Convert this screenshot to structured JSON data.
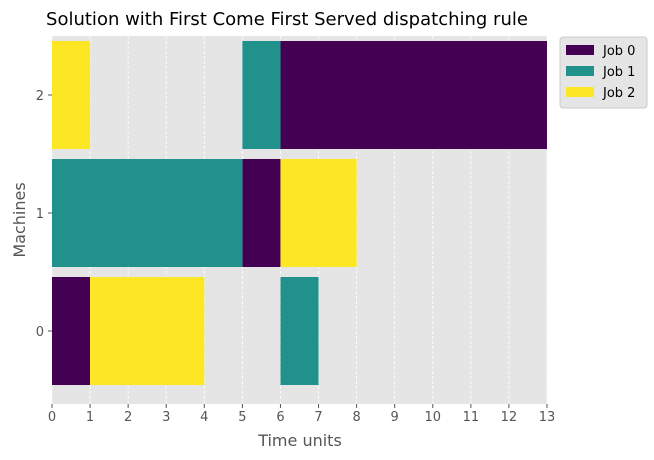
{
  "chart_data": {
    "type": "gantt",
    "title": "Solution with First Come First Served dispatching rule",
    "xlabel": "Time units",
    "ylabel": "Machines",
    "xlim": [
      0,
      13
    ],
    "x_ticks": [
      "0",
      "1",
      "2",
      "3",
      "4",
      "5",
      "6",
      "7",
      "8",
      "9",
      "10",
      "11",
      "12",
      "13"
    ],
    "machines": [
      "0",
      "1",
      "2"
    ],
    "grid": true,
    "legend_position": "outside-top-right",
    "series": [
      {
        "name": "Job 0",
        "color": "#440154",
        "tasks": [
          {
            "machine": "2",
            "start": 6,
            "end": 13
          },
          {
            "machine": "1",
            "start": 5,
            "end": 6
          },
          {
            "machine": "0",
            "start": 0,
            "end": 1
          }
        ]
      },
      {
        "name": "Job 1",
        "color": "#21918c",
        "tasks": [
          {
            "machine": "2",
            "start": 5,
            "end": 6
          },
          {
            "machine": "1",
            "start": 0,
            "end": 5
          },
          {
            "machine": "0",
            "start": 6,
            "end": 7
          }
        ]
      },
      {
        "name": "Job 2",
        "color": "#fde725",
        "tasks": [
          {
            "machine": "2",
            "start": 0,
            "end": 1
          },
          {
            "machine": "1",
            "start": 6,
            "end": 8
          },
          {
            "machine": "0",
            "start": 1,
            "end": 4
          }
        ]
      }
    ]
  }
}
